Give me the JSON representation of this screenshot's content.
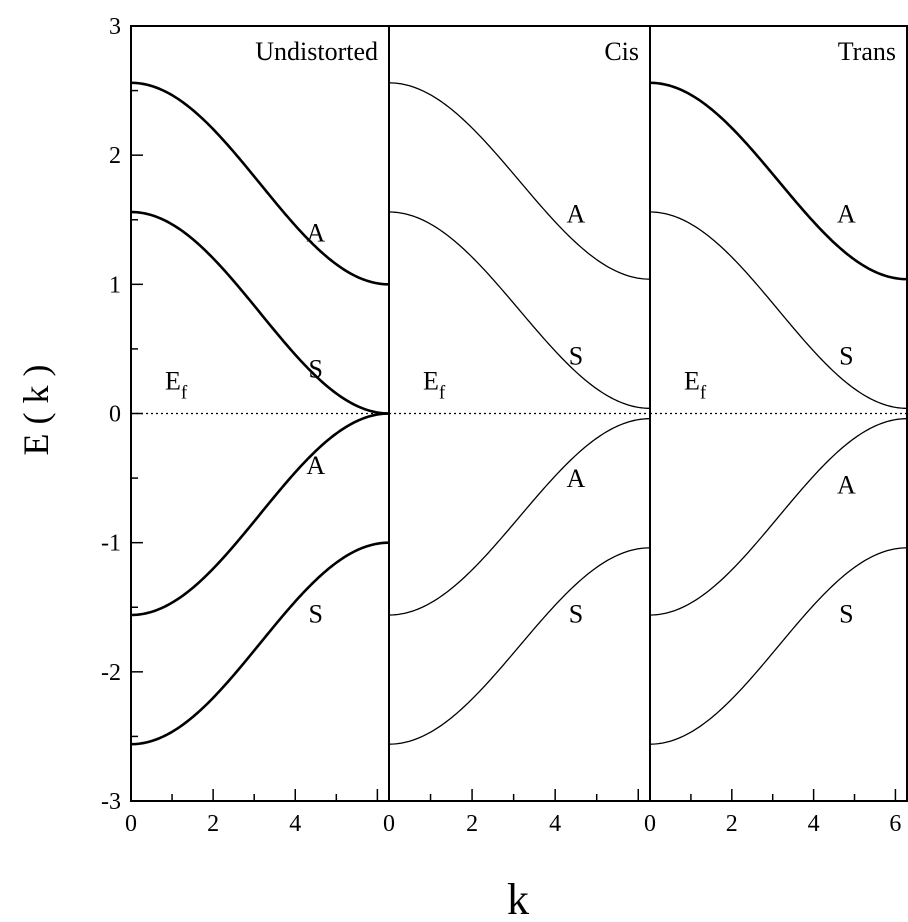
{
  "chart_data": {
    "type": "line",
    "xlabel": "k",
    "ylabel": "E ( k )",
    "ylim": [
      -3,
      3
    ],
    "yticks": [
      "-3",
      "-2",
      "-1",
      "0",
      "1",
      "2",
      "3"
    ],
    "xlim": [
      0,
      6.283
    ],
    "xticks": [
      "0",
      "2",
      "4",
      "6"
    ],
    "fermi_level": {
      "y": 0,
      "style": "dotted",
      "label": "E",
      "label_sub": "f"
    },
    "panels": [
      {
        "title": "Undistorted",
        "xtick_labels": [
          "0",
          "2",
          "4"
        ],
        "line_weight": "thick",
        "series": [
          {
            "name": "A",
            "k_start": 0,
            "k_end": 6.283,
            "E_start": 2.56,
            "E_end": 1.0
          },
          {
            "name": "S",
            "k_start": 0,
            "k_end": 6.283,
            "E_start": 1.56,
            "E_end": 0.0
          },
          {
            "name": "A",
            "k_start": 0,
            "k_end": 6.283,
            "E_start": -1.56,
            "E_end": 0.0
          },
          {
            "name": "S",
            "k_start": 0,
            "k_end": 6.283,
            "E_start": -2.56,
            "E_end": -1.0
          }
        ],
        "band_labels": [
          {
            "text": "A",
            "k": 4.5,
            "E": 1.4
          },
          {
            "text": "S",
            "k": 4.5,
            "E": 0.35
          },
          {
            "text": "A",
            "k": 4.5,
            "E": -0.4
          },
          {
            "text": "S",
            "k": 4.5,
            "E": -1.55
          }
        ]
      },
      {
        "title": "Cis",
        "xtick_labels": [
          "0",
          "2",
          "4"
        ],
        "line_weight": "thin",
        "series": [
          {
            "name": "A",
            "k_start": 0,
            "k_end": 6.283,
            "E_start": 2.56,
            "E_end": 1.04
          },
          {
            "name": "S",
            "k_start": 0,
            "k_end": 6.283,
            "E_start": 1.56,
            "E_end": 0.04
          },
          {
            "name": "A",
            "k_start": 0,
            "k_end": 6.283,
            "E_start": -1.56,
            "E_end": -0.04
          },
          {
            "name": "S",
            "k_start": 0,
            "k_end": 6.283,
            "E_start": -2.56,
            "E_end": -1.04
          }
        ],
        "band_labels": [
          {
            "text": "A",
            "k": 4.5,
            "E": 1.55
          },
          {
            "text": "S",
            "k": 4.5,
            "E": 0.45
          },
          {
            "text": "A",
            "k": 4.5,
            "E": -0.5
          },
          {
            "text": "S",
            "k": 4.5,
            "E": -1.55
          }
        ]
      },
      {
        "title": "Trans",
        "xtick_labels": [
          "0",
          "2",
          "4",
          "6"
        ],
        "line_weight": "mixed",
        "series": [
          {
            "name": "A",
            "k_start": 0,
            "k_end": 6.283,
            "E_start": 2.56,
            "E_end": 1.04,
            "weight": "thick"
          },
          {
            "name": "S",
            "k_start": 0,
            "k_end": 6.283,
            "E_start": 1.56,
            "E_end": 0.04,
            "weight": "thin"
          },
          {
            "name": "A",
            "k_start": 0,
            "k_end": 6.283,
            "E_start": -1.56,
            "E_end": -0.04,
            "weight": "thin"
          },
          {
            "name": "S",
            "k_start": 0,
            "k_end": 6.283,
            "E_start": -2.56,
            "E_end": -1.04,
            "weight": "thin"
          }
        ],
        "band_labels": [
          {
            "text": "A",
            "k": 4.8,
            "E": 1.55
          },
          {
            "text": "S",
            "k": 4.8,
            "E": 0.45
          },
          {
            "text": "A",
            "k": 4.8,
            "E": -0.55
          },
          {
            "text": "S",
            "k": 4.8,
            "E": -1.55
          }
        ]
      }
    ]
  }
}
